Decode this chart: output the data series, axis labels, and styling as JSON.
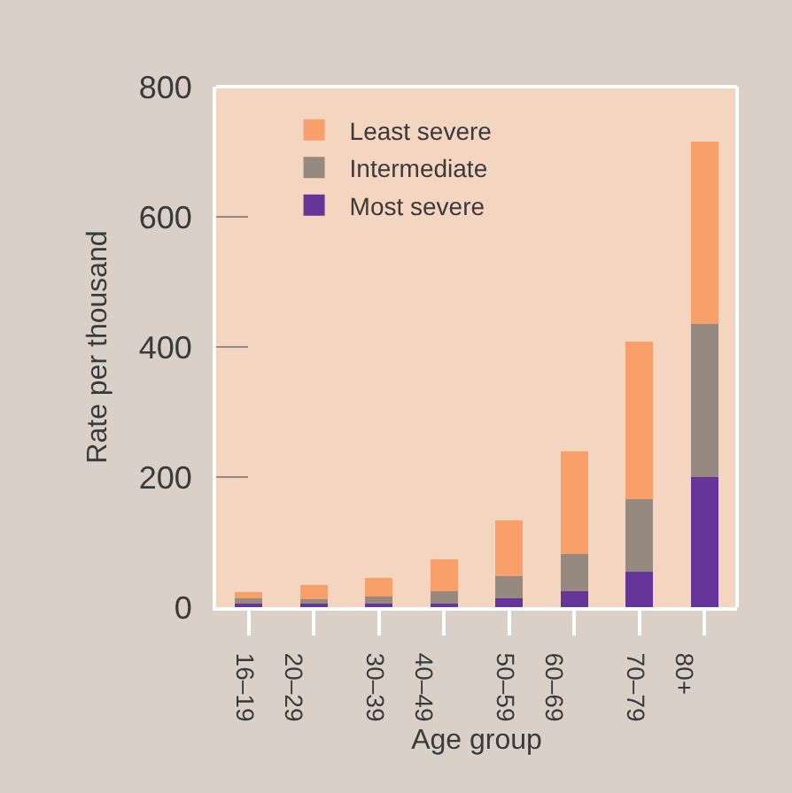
{
  "chart_data": {
    "type": "bar",
    "stacked": true,
    "xlabel": "Age group",
    "ylabel": "Rate per thousand",
    "categories": [
      "16–19",
      "20–29",
      "30–39",
      "40–49",
      "50–59",
      "60–69",
      "70–79",
      "80+"
    ],
    "series": [
      {
        "name": "Most severe",
        "color": "#66359a",
        "values": [
          6,
          6,
          6,
          6,
          14,
          25,
          55,
          200
        ]
      },
      {
        "name": "Intermediate",
        "color": "#968a80",
        "values": [
          8,
          6,
          10,
          18,
          33,
          57,
          111,
          236
        ]
      },
      {
        "name": "Least severe",
        "color": "#f9a06a",
        "values": [
          9,
          22,
          29,
          49,
          86,
          158,
          242,
          279
        ]
      }
    ],
    "ylim": [
      0,
      800
    ],
    "yticks": [
      0,
      200,
      400,
      600,
      800
    ],
    "grid": false,
    "legend": "top left"
  }
}
